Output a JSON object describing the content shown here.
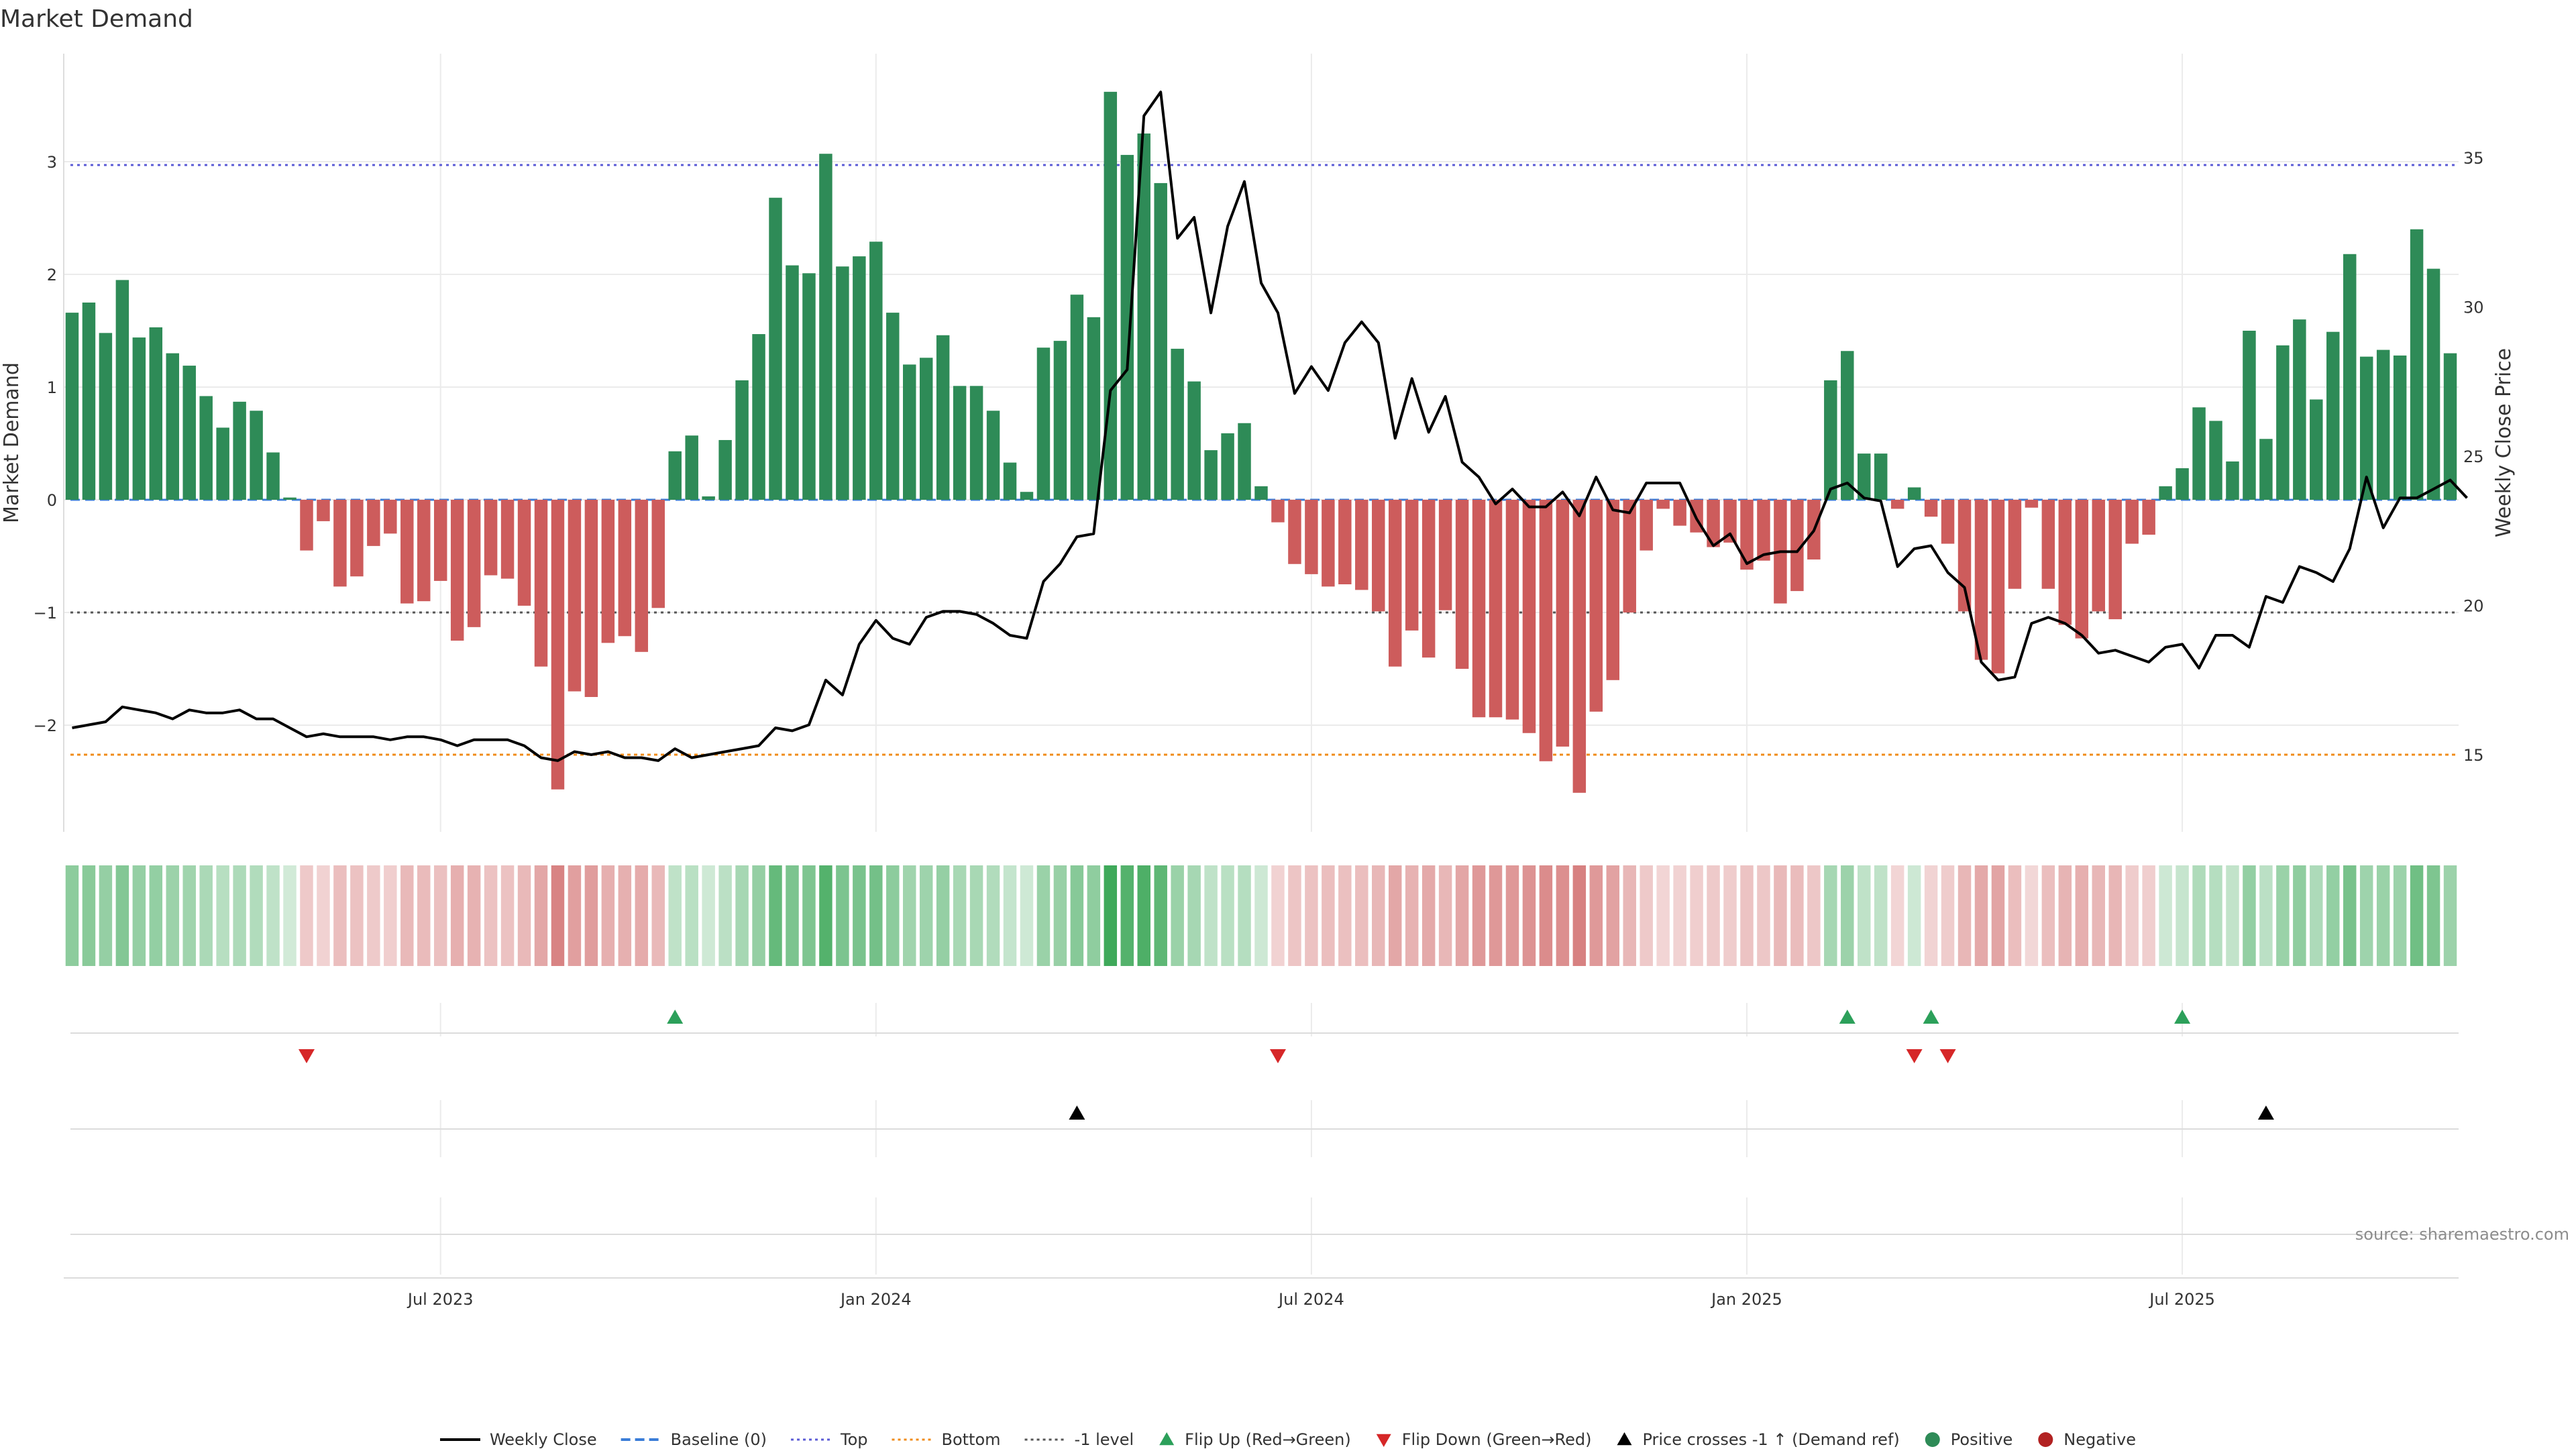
{
  "chart_data": {
    "type": "bar",
    "title": "Market Demand",
    "ylabel": "Market Demand",
    "y2label": "Weekly Close Price",
    "ylim": [
      -2.92,
      3.95
    ],
    "y2lim": [
      12.4,
      38.5
    ],
    "y_ticks": [
      {
        "v": -2,
        "label": "−2"
      },
      {
        "v": -1,
        "label": "−1"
      },
      {
        "v": 0,
        "label": "0"
      },
      {
        "v": 1,
        "label": "1"
      },
      {
        "v": 2,
        "label": "2"
      },
      {
        "v": 3,
        "label": "3"
      }
    ],
    "y2_ticks": [
      {
        "v": 15,
        "label": "15"
      },
      {
        "v": 20,
        "label": "20"
      },
      {
        "v": 25,
        "label": "25"
      },
      {
        "v": 30,
        "label": "30"
      },
      {
        "v": 35,
        "label": "35"
      }
    ],
    "x_ticks": [
      {
        "index": 22,
        "label": "Jul 2023"
      },
      {
        "index": 48,
        "label": "Jan 2024"
      },
      {
        "index": 74,
        "label": "Jul 2024"
      },
      {
        "index": 100,
        "label": "Jan 2025"
      },
      {
        "index": 126,
        "label": "Jul 2025"
      }
    ],
    "top_level": 2.97,
    "bottom_level_price": 15.0,
    "minus_one_level": -1,
    "demand": [
      1.66,
      1.75,
      1.48,
      1.95,
      1.44,
      1.53,
      1.3,
      1.19,
      0.92,
      0.64,
      0.87,
      0.79,
      0.42,
      0.02,
      -0.45,
      -0.19,
      -0.77,
      -0.68,
      -0.41,
      -0.3,
      -0.92,
      -0.9,
      -0.72,
      -1.25,
      -1.13,
      -0.67,
      -0.7,
      -0.94,
      -1.48,
      -2.57,
      -1.7,
      -1.75,
      -1.27,
      -1.21,
      -1.35,
      -0.96,
      0.43,
      0.57,
      0.03,
      0.53,
      1.06,
      1.47,
      2.68,
      2.08,
      2.01,
      3.07,
      2.07,
      2.16,
      2.29,
      1.66,
      1.2,
      1.26,
      1.46,
      1.01,
      1.01,
      0.79,
      0.33,
      0.07,
      1.35,
      1.41,
      1.82,
      1.62,
      3.62,
      3.06,
      3.25,
      2.81,
      1.34,
      1.05,
      0.44,
      0.59,
      0.68,
      0.12,
      -0.2,
      -0.57,
      -0.66,
      -0.77,
      -0.75,
      -0.8,
      -0.99,
      -1.48,
      -1.16,
      -1.4,
      -0.98,
      -1.5,
      -1.93,
      -1.93,
      -1.95,
      -2.07,
      -2.32,
      -2.19,
      -2.6,
      -1.88,
      -1.6,
      -1.0,
      -0.45,
      -0.08,
      -0.23,
      -0.29,
      -0.42,
      -0.38,
      -0.62,
      -0.54,
      -0.92,
      -0.81,
      -0.53,
      1.06,
      1.32,
      0.41,
      0.41,
      -0.08,
      0.11,
      -0.15,
      -0.39,
      -0.99,
      -1.42,
      -1.54,
      -0.79,
      -0.07,
      -0.79,
      -1.11,
      -1.23,
      -0.99,
      -1.06,
      -0.39,
      -0.31,
      0.12,
      0.28,
      0.82,
      0.7,
      0.34,
      1.5,
      0.54,
      1.37,
      1.6,
      0.89,
      1.49,
      2.18,
      1.27,
      1.33,
      1.28,
      2.4,
      2.05,
      1.3
    ],
    "price": [
      15.9,
      16.0,
      16.1,
      16.6,
      16.5,
      16.4,
      16.2,
      16.5,
      16.4,
      16.4,
      16.5,
      16.2,
      16.2,
      15.9,
      15.6,
      15.7,
      15.6,
      15.6,
      15.6,
      15.5,
      15.6,
      15.6,
      15.5,
      15.3,
      15.5,
      15.5,
      15.5,
      15.3,
      14.9,
      14.8,
      15.1,
      15.0,
      15.1,
      14.9,
      14.9,
      14.8,
      15.2,
      14.9,
      15.0,
      15.1,
      15.2,
      15.3,
      15.9,
      15.8,
      16.0,
      17.5,
      17.0,
      18.7,
      19.5,
      18.9,
      18.7,
      19.6,
      19.8,
      19.8,
      19.7,
      19.4,
      19.0,
      18.9,
      20.8,
      21.4,
      22.3,
      22.4,
      27.2,
      27.9,
      36.4,
      37.2,
      32.3,
      33.0,
      29.8,
      32.7,
      34.2,
      30.8,
      29.8,
      27.1,
      28.0,
      27.2,
      28.8,
      29.5,
      28.8,
      25.6,
      27.6,
      25.8,
      27.0,
      24.8,
      24.3,
      23.4,
      23.9,
      23.3,
      23.3,
      23.8,
      23.0,
      24.3,
      23.2,
      23.1,
      24.1,
      24.1,
      24.1,
      22.9,
      22.0,
      22.4,
      21.4,
      21.7,
      21.8,
      21.8,
      22.5,
      23.9,
      24.1,
      23.6,
      23.5,
      21.3,
      21.9,
      22.0,
      21.1,
      20.6,
      18.1,
      17.5,
      17.6,
      19.4,
      19.6,
      19.4,
      19.0,
      18.4,
      18.5,
      18.3,
      18.1,
      18.6,
      18.7,
      17.9,
      19.0,
      19.0,
      18.6,
      20.3,
      20.1,
      21.3,
      21.1,
      20.8,
      21.9,
      24.3,
      22.6,
      23.6,
      23.6,
      23.9,
      24.2,
      23.6
    ],
    "flip_up": [
      36,
      106,
      111,
      126
    ],
    "flip_down": [
      14,
      72,
      110,
      112
    ],
    "price_cross": [
      60,
      131
    ],
    "legend": [
      {
        "key": "weekly-close",
        "label": "Weekly Close",
        "marker": "solid-line",
        "color": "#000000"
      },
      {
        "key": "baseline",
        "label": "Baseline (0)",
        "marker": "dashed-line",
        "color": "#3b7dd8"
      },
      {
        "key": "top",
        "label": "Top",
        "marker": "dotted-line",
        "color": "#5b5bd6"
      },
      {
        "key": "bottom",
        "label": "Bottom",
        "marker": "dotted-line",
        "color": "#f08c1a"
      },
      {
        "key": "minus-one",
        "label": "-1 level",
        "marker": "dotted-line",
        "color": "#555555"
      },
      {
        "key": "flip-up",
        "label": "Flip Up (Red→Green)",
        "marker": "triangle-up",
        "color": "#2ca05a"
      },
      {
        "key": "flip-down",
        "label": "Flip Down (Green→Red)",
        "marker": "triangle-down",
        "color": "#d62728"
      },
      {
        "key": "price-cross",
        "label": "Price crosses -1 ↑ (Demand ref)",
        "marker": "triangle-up",
        "color": "#000000"
      },
      {
        "key": "positive",
        "label": "Positive",
        "marker": "circle",
        "color": "#2e8b57"
      },
      {
        "key": "negative",
        "label": "Negative",
        "marker": "circle",
        "color": "#b22222"
      }
    ],
    "colors": {
      "positive_bar": "#2e8b57",
      "negative_bar": "#cd5c5c",
      "price_line": "#000000",
      "grid": "#ebebeb",
      "top_line": "#5b5bd6",
      "bottom_line": "#f08c1a",
      "minus_one_line": "#555555",
      "baseline": "#3b7dd8",
      "flip_up": "#2ca05a",
      "flip_down": "#d62728",
      "price_cross": "#000000"
    },
    "source": "source: sharemaestro.com"
  }
}
